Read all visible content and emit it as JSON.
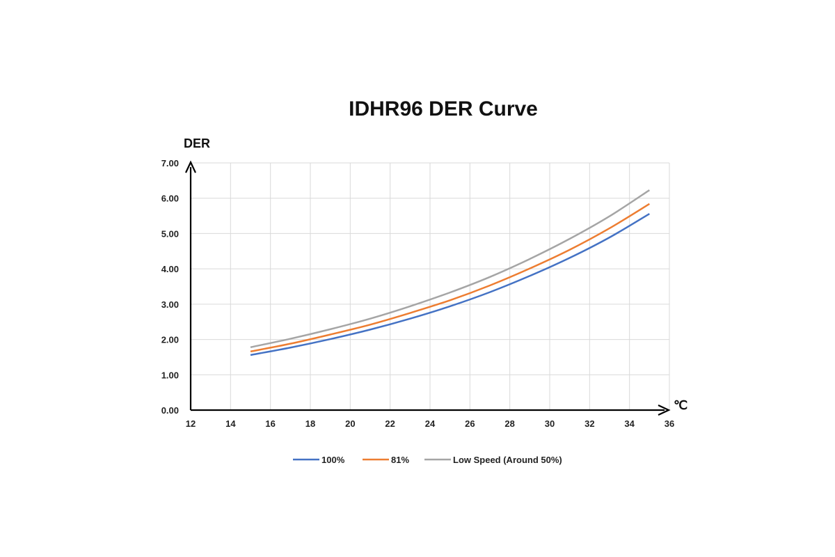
{
  "chart_data": {
    "type": "line",
    "title": "IDHR96  DER Curve",
    "ylabel": "DER",
    "xlabel": "℃",
    "xlim": [
      12,
      36
    ],
    "ylim": [
      0,
      7
    ],
    "xticks": [
      "12",
      "14",
      "16",
      "18",
      "20",
      "22",
      "24",
      "26",
      "28",
      "30",
      "32",
      "34",
      "36"
    ],
    "yticks": [
      "0.00",
      "1.00",
      "2.00",
      "3.00",
      "4.00",
      "5.00",
      "6.00",
      "7.00"
    ],
    "grid": true,
    "legend_position": "bottom",
    "x": [
      15,
      17,
      19,
      21,
      23,
      25,
      27,
      29,
      31,
      33,
      35
    ],
    "series": [
      {
        "name": "100%",
        "color": "#4472c4",
        "values": [
          1.56,
          1.77,
          2.01,
          2.28,
          2.59,
          2.94,
          3.34,
          3.8,
          4.31,
          4.89,
          5.56
        ]
      },
      {
        "name": "81%",
        "color": "#ed7d31",
        "values": [
          1.66,
          1.88,
          2.14,
          2.42,
          2.75,
          3.11,
          3.53,
          4.01,
          4.54,
          5.15,
          5.84
        ]
      },
      {
        "name": "Low Speed (Around 50%)",
        "color": "#a5a5a5",
        "values": [
          1.78,
          2.02,
          2.29,
          2.59,
          2.94,
          3.33,
          3.77,
          4.28,
          4.85,
          5.49,
          6.23
        ]
      }
    ]
  }
}
